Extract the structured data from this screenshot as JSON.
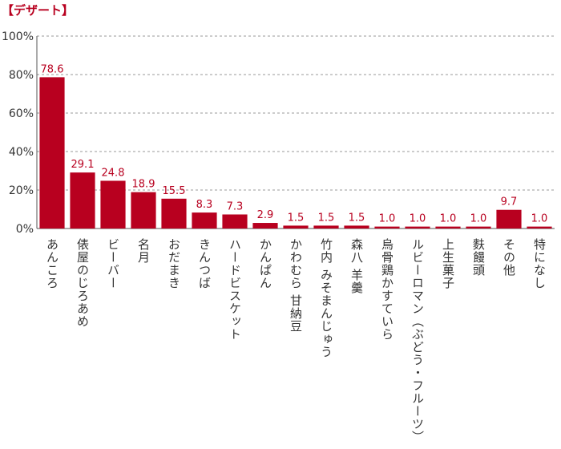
{
  "chart_data": {
    "type": "bar",
    "title": "【デザート】",
    "categories": [
      "あんころ",
      "俵屋のじろあめ",
      "ビーバー",
      "名月",
      "おだまき",
      "きんつば",
      "ハードビスケット",
      "かんぱん",
      "かわむら 甘納豆",
      "竹内 みそまんじゅう",
      "森八 羊羹",
      "烏骨鶏かすていら",
      "ルビーロマン（ぶどう・フルーツ）",
      "上生菓子",
      "麩饅頭",
      "その他",
      "特になし"
    ],
    "values": [
      78.6,
      29.1,
      24.8,
      18.9,
      15.5,
      8.3,
      7.3,
      2.9,
      1.5,
      1.5,
      1.5,
      1.0,
      1.0,
      1.0,
      1.0,
      9.7,
      1.0
    ],
    "value_labels": [
      "78.6",
      "29.1",
      "24.8",
      "18.9",
      "15.5",
      "8.3",
      "7.3",
      "2.9",
      "1.5",
      "1.5",
      "1.5",
      "1.0",
      "1.0",
      "1.0",
      "1.0",
      "9.7",
      "1.0"
    ],
    "yticks": [
      "0%",
      "20%",
      "40%",
      "60%",
      "80%",
      "100%"
    ],
    "ylim": [
      0,
      100
    ],
    "grid": true,
    "xlabel": "",
    "ylabel": "",
    "colors": {
      "bar": "#b8001f",
      "title": "#b8001f",
      "label": "#b8001f",
      "grid": "#999999",
      "axis": "#555555"
    }
  }
}
